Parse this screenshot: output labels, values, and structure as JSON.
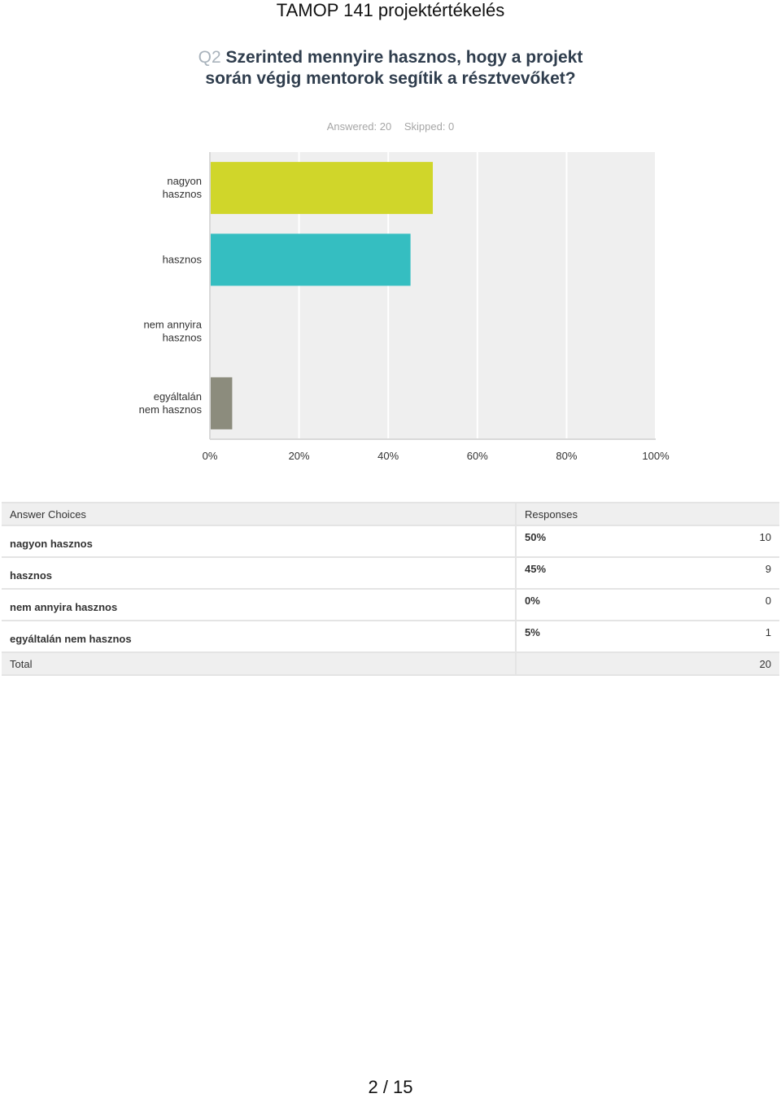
{
  "header": {
    "title": "TAMOP 141 projektértékelés"
  },
  "question": {
    "number": "Q2",
    "text": "Szerinted mennyire hasznos, hogy a projekt során végig mentorok segítik a résztvevőket?",
    "answered": "Answered: 20",
    "skipped": "Skipped: 0"
  },
  "chart_data": {
    "type": "bar",
    "orientation": "horizontal",
    "categories": [
      [
        "nagyon",
        "hasznos"
      ],
      [
        "hasznos"
      ],
      [
        "nem annyira",
        "hasznos"
      ],
      [
        "egyáltalán",
        "nem hasznos"
      ]
    ],
    "values": [
      50,
      45,
      0,
      5
    ],
    "colors": [
      "#d0d62a",
      "#35bec1",
      "#f18b73",
      "#8c8c7d"
    ],
    "xlim": [
      0,
      100
    ],
    "xticks": [
      "0%",
      "20%",
      "40%",
      "60%",
      "80%",
      "100%"
    ],
    "grid": true
  },
  "table": {
    "headers": {
      "choices": "Answer Choices",
      "responses": "Responses"
    },
    "rows": [
      {
        "choice": "nagyon hasznos",
        "percent": "50%",
        "count": "10"
      },
      {
        "choice": "hasznos",
        "percent": "45%",
        "count": "9"
      },
      {
        "choice": "nem annyira hasznos",
        "percent": "0%",
        "count": "0"
      },
      {
        "choice": "egyáltalán nem hasznos",
        "percent": "5%",
        "count": "1"
      }
    ],
    "total_label": "Total",
    "total_count": "20"
  },
  "footer": {
    "page": "2 / 15"
  }
}
